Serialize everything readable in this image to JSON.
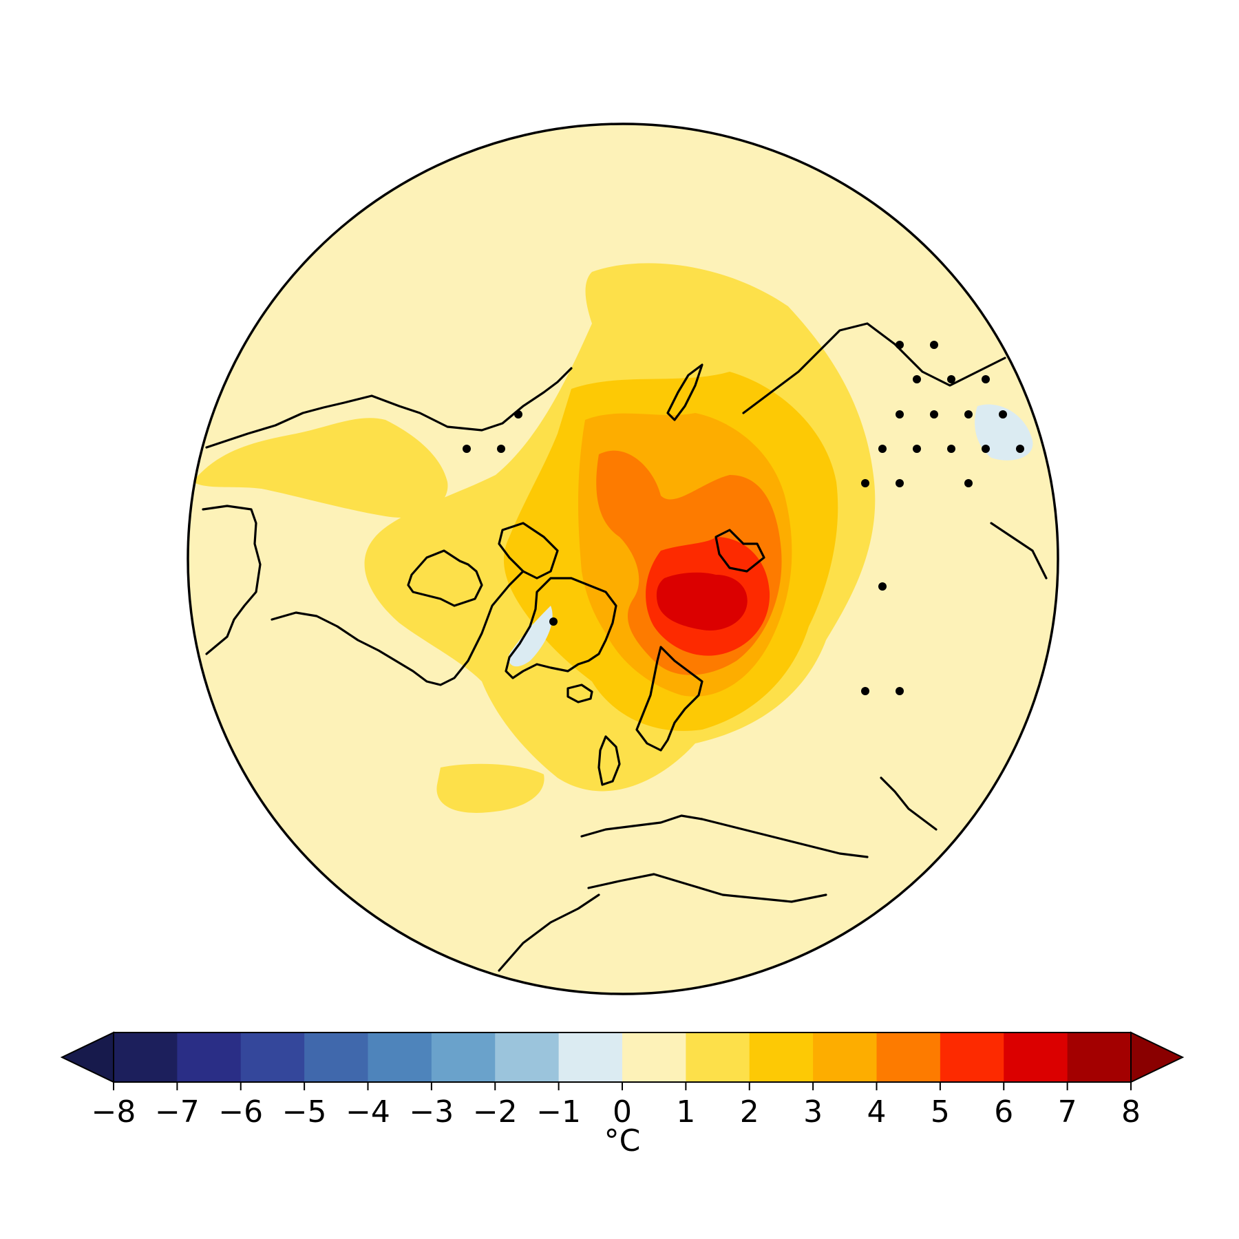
{
  "map": {
    "projection": "north-polar-orthographic",
    "background_color": "#fdf2b8",
    "stippling": "black dots mark significant grid points",
    "anomaly_regions": [
      {
        "name": "broad-warming-1to2",
        "level": "1 to 2",
        "color": "#fde04a"
      },
      {
        "name": "warming-2to3",
        "level": "2 to 3",
        "color": "#fdc905"
      },
      {
        "name": "warming-3to4",
        "level": "3 to 4",
        "color": "#fdad00"
      },
      {
        "name": "warming-4to5",
        "level": "4 to 5",
        "color": "#fd7b00"
      },
      {
        "name": "warming-5to6",
        "level": "5 to 6",
        "color": "#fd2a00"
      },
      {
        "name": "warming-6to7",
        "level": "6 to 7",
        "color": "#db0000"
      },
      {
        "name": "cooling-minus1to0",
        "level": "-1 to 0",
        "color": "#dbebf2"
      }
    ]
  },
  "colorbar": {
    "unit": "°C",
    "extend": "both",
    "ticks": [
      "−8",
      "−7",
      "−6",
      "−5",
      "−4",
      "−3",
      "−2",
      "−1",
      "0",
      "1",
      "2",
      "3",
      "4",
      "5",
      "6",
      "7",
      "8"
    ],
    "colors": [
      "#1c1f5c",
      "#2a2e86",
      "#34479b",
      "#4068ac",
      "#4e84bb",
      "#6aa2cb",
      "#9bc4dc",
      "#dbebf2",
      "#fdf2b8",
      "#fde04a",
      "#fdc905",
      "#fdad00",
      "#fd7b00",
      "#fd2a00",
      "#db0000",
      "#a30000"
    ],
    "under_color": "#171a4c",
    "over_color": "#8a0000"
  }
}
